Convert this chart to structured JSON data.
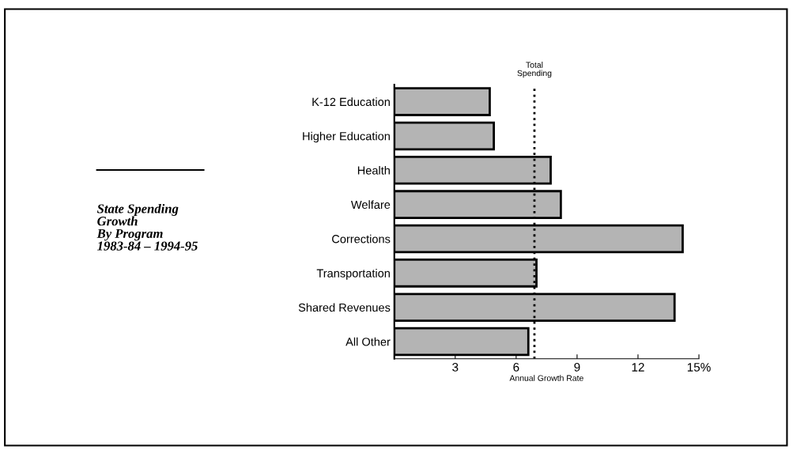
{
  "chart_data": {
    "type": "bar",
    "orientation": "horizontal",
    "title": "State Spending\nGrowth\nBy Program\n1983-84 – 1994-95",
    "xlabel": "Annual Growth Rate",
    "categories": [
      "K-12 Education",
      "Higher Education",
      "Health",
      "Welfare",
      "Corrections",
      "Transportation",
      "Shared Revenues",
      "All Other"
    ],
    "values": [
      4.7,
      4.9,
      7.7,
      8.2,
      14.2,
      7.0,
      13.8,
      6.6
    ],
    "color": "#b4b4b4",
    "xlim": [
      0,
      15
    ],
    "xticks": [
      3,
      6,
      9,
      12,
      {
        "value": 15,
        "label": "15%"
      }
    ],
    "ref_lines": [
      {
        "axis": "x",
        "value": 6.9,
        "label": "Total\nSpending",
        "line_style": "dotted",
        "color": "#000000"
      }
    ],
    "grid": false
  }
}
